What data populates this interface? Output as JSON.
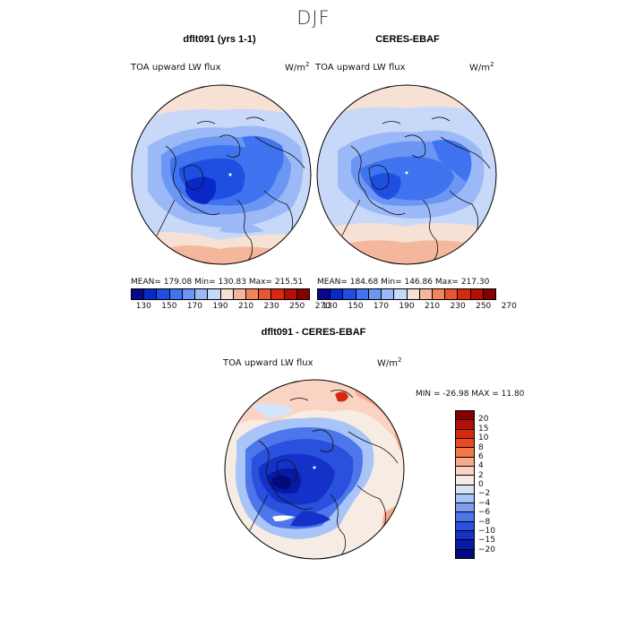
{
  "title": "DJF",
  "field": "TOA upward LW flux",
  "units_base": "W/m",
  "units_exp": "2",
  "panels": {
    "model": {
      "title": "dflt091 (yrs 1-1)",
      "stats": "MEAN= 179.08   Min= 130.83   Max= 215.51"
    },
    "obs": {
      "title": "CERES-EBAF",
      "stats": "MEAN= 184.68   Min= 146.86   Max= 217.30"
    },
    "diff": {
      "title": "dflt091 - CERES-EBAF",
      "stats": "MIN = -26.98 MAX =  11.80"
    }
  },
  "colorbar_abs": {
    "colors": [
      "#08088a",
      "#0a28c8",
      "#1f4fe0",
      "#3f73f0",
      "#6c96f4",
      "#9bb9f6",
      "#c7d8f8",
      "#f7e0d4",
      "#f5b79c",
      "#f0855e",
      "#e85530",
      "#d62a10",
      "#b30f05",
      "#860000"
    ],
    "tick_labels": [
      "130",
      "150",
      "170",
      "190",
      "210",
      "230",
      "250",
      "270"
    ]
  },
  "colorbar_diff": {
    "colors": [
      "#860000",
      "#b30f05",
      "#d62a10",
      "#ec4a20",
      "#f5784a",
      "#f7a98a",
      "#fad3c2",
      "#f7ece4",
      "#d6e4fa",
      "#a9c4f7",
      "#7c9ff2",
      "#4c76ea",
      "#2a50de",
      "#1432c8",
      "#081aa5",
      "#020a80"
    ],
    "tick_labels": [
      "20",
      "15",
      "10",
      "8",
      "6",
      "4",
      "2",
      "0",
      "−2",
      "−4",
      "−6",
      "−8",
      "−10",
      "−15",
      "−20"
    ]
  }
}
